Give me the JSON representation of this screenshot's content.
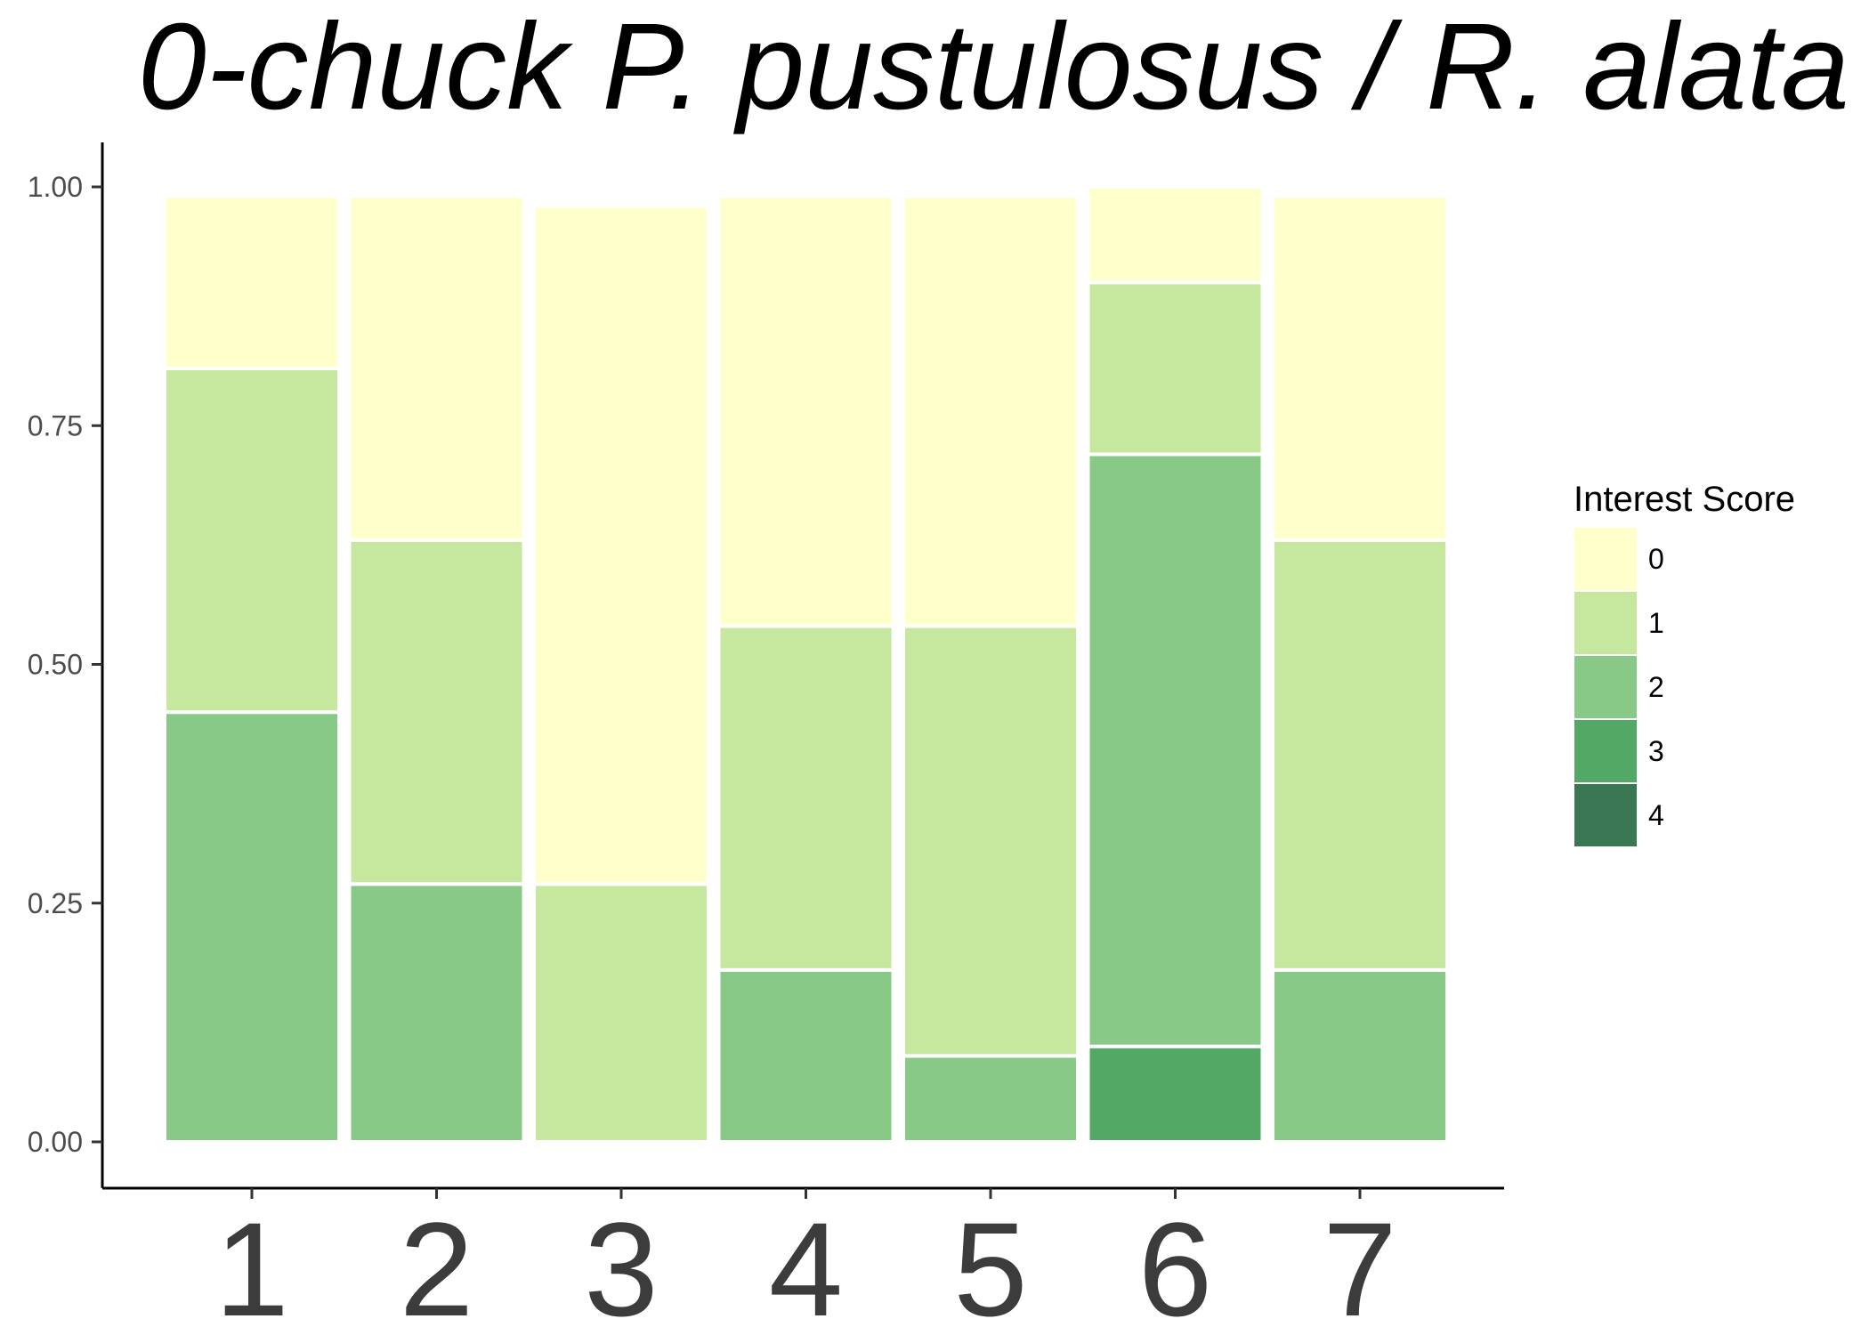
{
  "chart_data": {
    "type": "bar",
    "stacked": "proportion",
    "title": "0-chuck P. pustulosus / R. alata",
    "xlabel": "",
    "ylabel": "",
    "ylim": [
      0,
      1
    ],
    "yticks": [
      "0.00",
      "0.25",
      "0.50",
      "0.75",
      "1.00"
    ],
    "categories": [
      "1",
      "2",
      "3",
      "4",
      "5",
      "6",
      "7"
    ],
    "legend": {
      "title": "Interest Score",
      "position": "right"
    },
    "grid": false,
    "series": [
      {
        "name": "4",
        "color": "#3a7753",
        "values": [
          0.0,
          0.0,
          0.0,
          0.0,
          0.0,
          0.0,
          0.0
        ]
      },
      {
        "name": "3",
        "color": "#54a865",
        "values": [
          0.0,
          0.0,
          0.0,
          0.0,
          0.0,
          0.1,
          0.0
        ]
      },
      {
        "name": "2",
        "color": "#88c987",
        "values": [
          0.45,
          0.27,
          0.0,
          0.18,
          0.09,
          0.62,
          0.18
        ]
      },
      {
        "name": "1",
        "color": "#c6e89e",
        "values": [
          0.36,
          0.36,
          0.27,
          0.36,
          0.45,
          0.18,
          0.45
        ]
      },
      {
        "name": "0",
        "color": "#ffffcc",
        "values": [
          0.18,
          0.36,
          0.71,
          0.45,
          0.45,
          0.1,
          0.36
        ]
      }
    ]
  }
}
